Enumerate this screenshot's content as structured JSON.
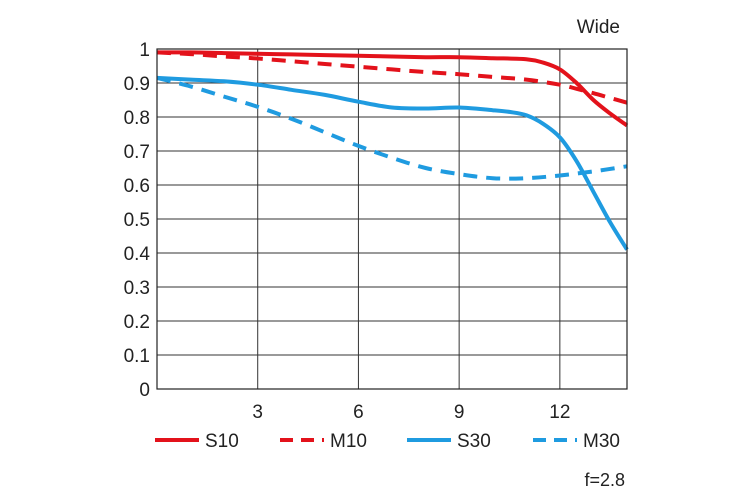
{
  "chart_data": {
    "type": "line",
    "title": "Wide",
    "footnote": "f=2.8",
    "xlabel": "",
    "ylabel": "",
    "xlim": [
      0,
      14
    ],
    "ylim": [
      0,
      1
    ],
    "x_ticks": [
      3,
      6,
      9,
      12
    ],
    "x_tick_labels": [
      "3",
      "6",
      "9",
      "12"
    ],
    "y_ticks": [
      0,
      0.1,
      0.2,
      0.3,
      0.4,
      0.5,
      0.6,
      0.7,
      0.8,
      0.9,
      1
    ],
    "y_tick_labels": [
      "0",
      "0.1",
      "0.2",
      "0.3",
      "0.4",
      "0.5",
      "0.6",
      "0.7",
      "0.8",
      "0.9",
      "1"
    ],
    "grid": true,
    "legend_position": "bottom",
    "series": [
      {
        "name": "S10",
        "color": "#e3121b",
        "style": "solid",
        "x": [
          0,
          1,
          2,
          3,
          4,
          5,
          6,
          7,
          8,
          9,
          10,
          11,
          11.5,
          12,
          12.5,
          13,
          13.5,
          14
        ],
        "y": [
          0.99,
          0.99,
          0.988,
          0.986,
          0.984,
          0.982,
          0.98,
          0.978,
          0.976,
          0.976,
          0.973,
          0.97,
          0.96,
          0.94,
          0.9,
          0.85,
          0.81,
          0.775
        ]
      },
      {
        "name": "M10",
        "color": "#e3121b",
        "style": "dashed",
        "x": [
          0,
          1,
          2,
          3,
          4,
          5,
          6,
          7,
          8,
          9,
          10,
          11,
          12,
          12.5,
          13,
          13.5,
          14
        ],
        "y": [
          0.99,
          0.985,
          0.978,
          0.972,
          0.964,
          0.956,
          0.948,
          0.94,
          0.932,
          0.926,
          0.918,
          0.91,
          0.895,
          0.883,
          0.87,
          0.856,
          0.842
        ]
      },
      {
        "name": "S30",
        "color": "#1f9be0",
        "style": "solid",
        "x": [
          0,
          1,
          2,
          3,
          4,
          5,
          6,
          7,
          8,
          9,
          10,
          10.5,
          11,
          11.5,
          12,
          12.5,
          13,
          13.5,
          14
        ],
        "y": [
          0.915,
          0.91,
          0.905,
          0.895,
          0.88,
          0.865,
          0.845,
          0.828,
          0.825,
          0.828,
          0.82,
          0.815,
          0.805,
          0.78,
          0.74,
          0.67,
          0.58,
          0.49,
          0.41
        ]
      },
      {
        "name": "M30",
        "color": "#1f9be0",
        "style": "dashed",
        "x": [
          0,
          1,
          2,
          3,
          4,
          5,
          6,
          7,
          8,
          9,
          10,
          11,
          12,
          13,
          14
        ],
        "y": [
          0.915,
          0.89,
          0.86,
          0.83,
          0.795,
          0.755,
          0.715,
          0.68,
          0.65,
          0.632,
          0.62,
          0.62,
          0.628,
          0.64,
          0.655
        ]
      }
    ]
  }
}
